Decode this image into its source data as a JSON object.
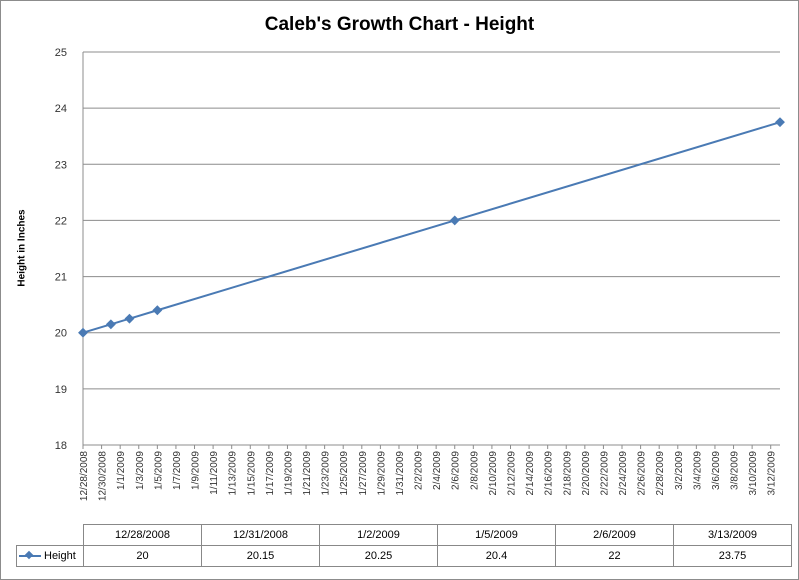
{
  "chart_data": {
    "type": "line",
    "title": "Caleb's Growth Chart - Height",
    "xlabel": "",
    "ylabel": "Height in Inches",
    "ylim": [
      18,
      25
    ],
    "yticks": [
      18,
      19,
      20,
      21,
      22,
      23,
      24,
      25
    ],
    "grid": true,
    "xlim": [
      "12/28/2008",
      "3/13/2009"
    ],
    "x_tick_labels": [
      "12/28/2008",
      "12/30/2008",
      "1/1/2009",
      "1/3/2009",
      "1/5/2009",
      "1/7/2009",
      "1/9/2009",
      "1/11/2009",
      "1/13/2009",
      "1/15/2009",
      "1/17/2009",
      "1/19/2009",
      "1/21/2009",
      "1/23/2009",
      "1/25/2009",
      "1/27/2009",
      "1/29/2009",
      "1/31/2009",
      "2/2/2009",
      "2/4/2009",
      "2/6/2009",
      "2/8/2009",
      "2/10/2009",
      "2/12/2009",
      "2/14/2009",
      "2/16/2009",
      "2/18/2009",
      "2/20/2009",
      "2/22/2009",
      "2/24/2009",
      "2/26/2009",
      "2/28/2009",
      "3/2/2009",
      "3/4/2009",
      "3/6/2009",
      "3/8/2009",
      "3/10/2009",
      "3/12/2009"
    ],
    "x": [
      "12/28/2008",
      "12/31/2008",
      "1/2/2009",
      "1/5/2009",
      "2/6/2009",
      "3/13/2009"
    ],
    "series": [
      {
        "name": "Height",
        "values": [
          20,
          20.15,
          20.25,
          20.4,
          22,
          23.75
        ],
        "color": "#4a7ab4"
      }
    ],
    "data_table": {
      "columns": [
        "12/28/2008",
        "12/31/2008",
        "1/2/2009",
        "1/5/2009",
        "2/6/2009",
        "3/13/2009"
      ],
      "row_label": "Height",
      "values": [
        "20",
        "20.15",
        "20.25",
        "20.4",
        "22",
        "23.75"
      ]
    }
  }
}
